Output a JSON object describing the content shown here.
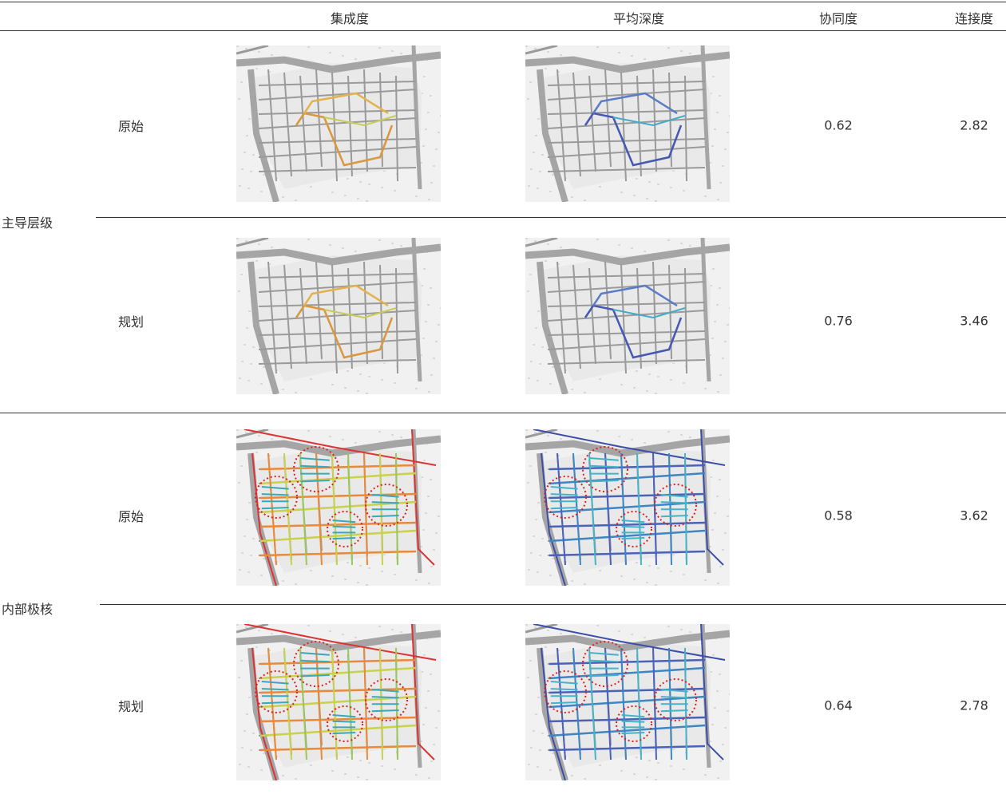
{
  "header": {
    "columns": [
      "集成度",
      "平均深度",
      "协同度",
      "连接度"
    ]
  },
  "groups": [
    {
      "label": "主导层级",
      "rows": [
        {
          "label": "原始",
          "synergy": "0.62",
          "connectivity": "2.82"
        },
        {
          "label": "规划",
          "synergy": "0.76",
          "connectivity": "3.46"
        }
      ]
    },
    {
      "label": "内部极核",
      "rows": [
        {
          "label": "原始",
          "synergy": "0.58",
          "connectivity": "3.62"
        },
        {
          "label": "规划",
          "synergy": "0.64",
          "connectivity": "2.78"
        }
      ]
    }
  ]
}
